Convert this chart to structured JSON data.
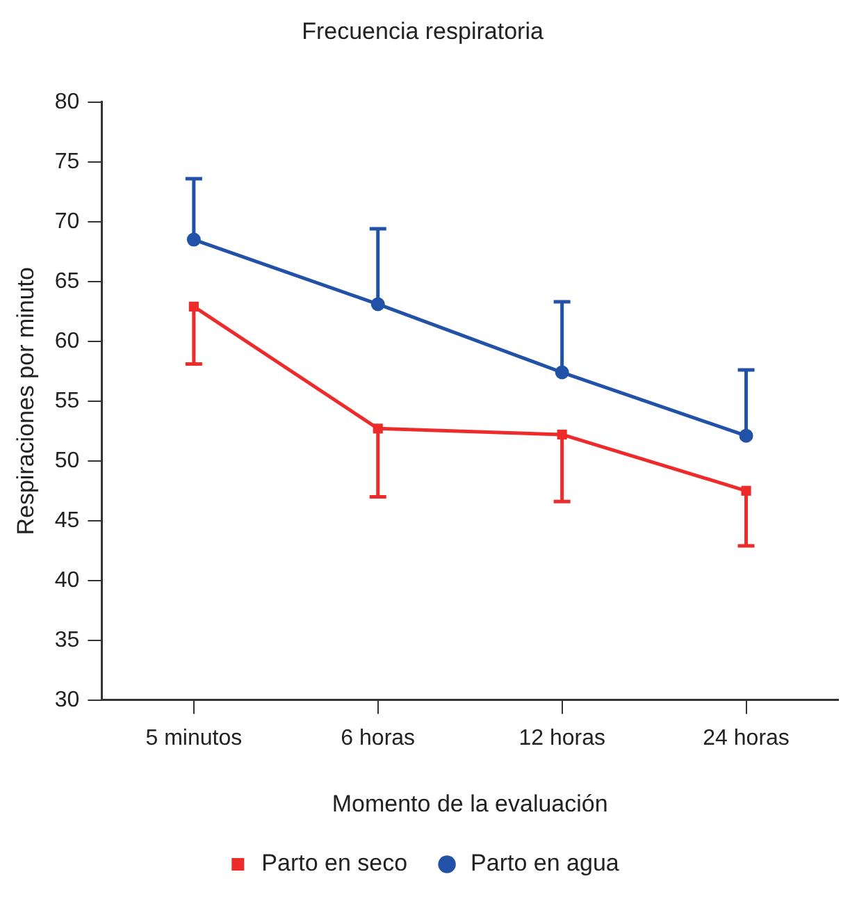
{
  "chart_data": {
    "type": "line",
    "title": "Frecuencia respiratoria",
    "xlabel": "Momento de la evaluación",
    "ylabel": "Respiraciones por minuto",
    "categories": [
      "5 minutos",
      "6 horas",
      "12 horas",
      "24 horas"
    ],
    "series": [
      {
        "name": "Parto en seco",
        "color": "#ee2b2b",
        "marker": "square",
        "values": [
          62.9,
          52.7,
          52.2,
          47.5
        ],
        "errors": [
          [
            58.1,
            62.9
          ],
          [
            47.0,
            52.7
          ],
          [
            46.6,
            52.2
          ],
          [
            42.9,
            47.5
          ]
        ]
      },
      {
        "name": "Parto en agua",
        "color": "#2152a8",
        "marker": "circle",
        "values": [
          68.5,
          63.1,
          57.4,
          52.1
        ],
        "errors": [
          [
            68.5,
            73.6
          ],
          [
            63.1,
            69.4
          ],
          [
            57.4,
            63.3
          ],
          [
            52.1,
            57.6
          ]
        ]
      }
    ],
    "ylim": [
      30,
      80
    ],
    "yticks": [
      30,
      35,
      40,
      45,
      50,
      55,
      60,
      65,
      70,
      75,
      80
    ],
    "grid": false,
    "legend": "bottom"
  }
}
